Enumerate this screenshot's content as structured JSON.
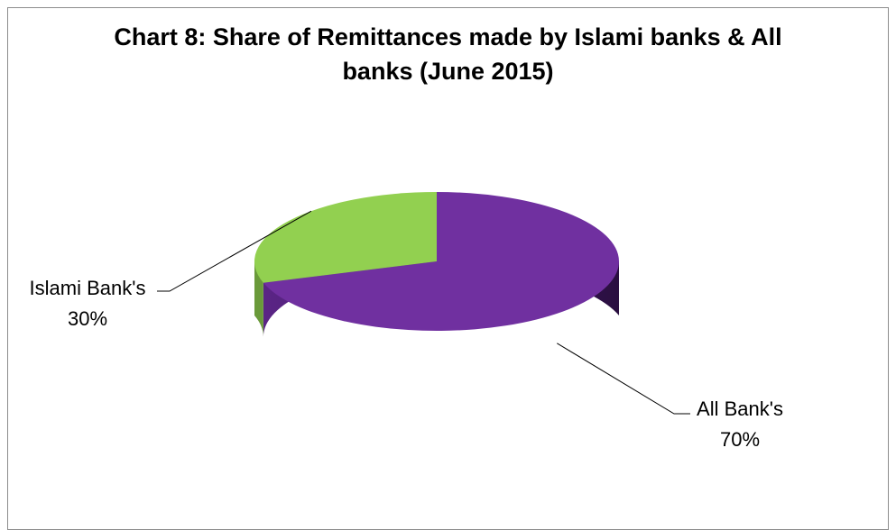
{
  "chart_data": {
    "type": "pie",
    "title_lines": [
      "Chart 8: Share of Remittances made by Islami banks &  All",
      "banks (June 2015)"
    ],
    "style": "3d",
    "slices": [
      {
        "label": "All Bank's",
        "value": 70,
        "value_label": "70%",
        "color": "#7030a0"
      },
      {
        "label": "Islami Bank's",
        "value": 30,
        "value_label": "30%",
        "color": "#92d050"
      }
    ],
    "data_labels": "outside-with-leader-lines",
    "legend": "none"
  }
}
